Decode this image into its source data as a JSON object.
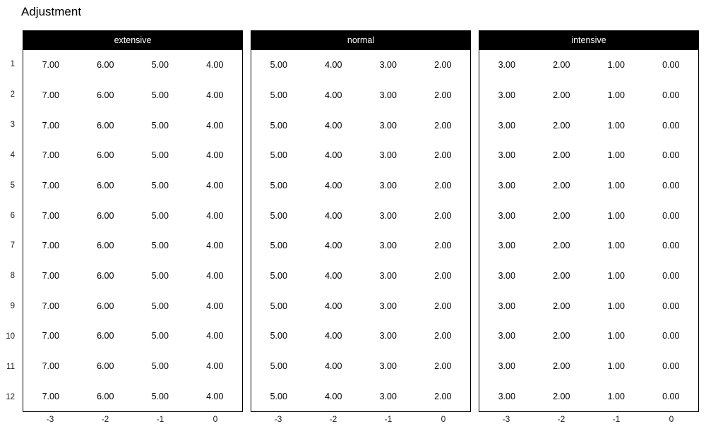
{
  "title": "Adjustment",
  "colors": {
    "background": "#ffffff",
    "strip_background": "#000000",
    "strip_text": "#ffffff",
    "panel_border": "#000000",
    "value_text": "#000000",
    "axis_text": "#1a1a1a"
  },
  "chart_data": {
    "type": "table",
    "title": "Adjustment",
    "legend": "none",
    "grid": "off",
    "row_count": 12,
    "values_constant_across_rows": true,
    "row_labels": [
      "1",
      "2",
      "3",
      "4",
      "5",
      "6",
      "7",
      "8",
      "9",
      "10",
      "11",
      "12"
    ],
    "x_ticks": [
      "-3",
      "-2",
      "-1",
      "0"
    ],
    "facets": [
      {
        "label": "extensive",
        "row_values": [
          "7.00",
          "6.00",
          "5.00",
          "4.00"
        ]
      },
      {
        "label": "normal",
        "row_values": [
          "5.00",
          "4.00",
          "3.00",
          "2.00"
        ]
      },
      {
        "label": "intensive",
        "row_values": [
          "3.00",
          "2.00",
          "1.00",
          "0.00"
        ]
      }
    ]
  }
}
